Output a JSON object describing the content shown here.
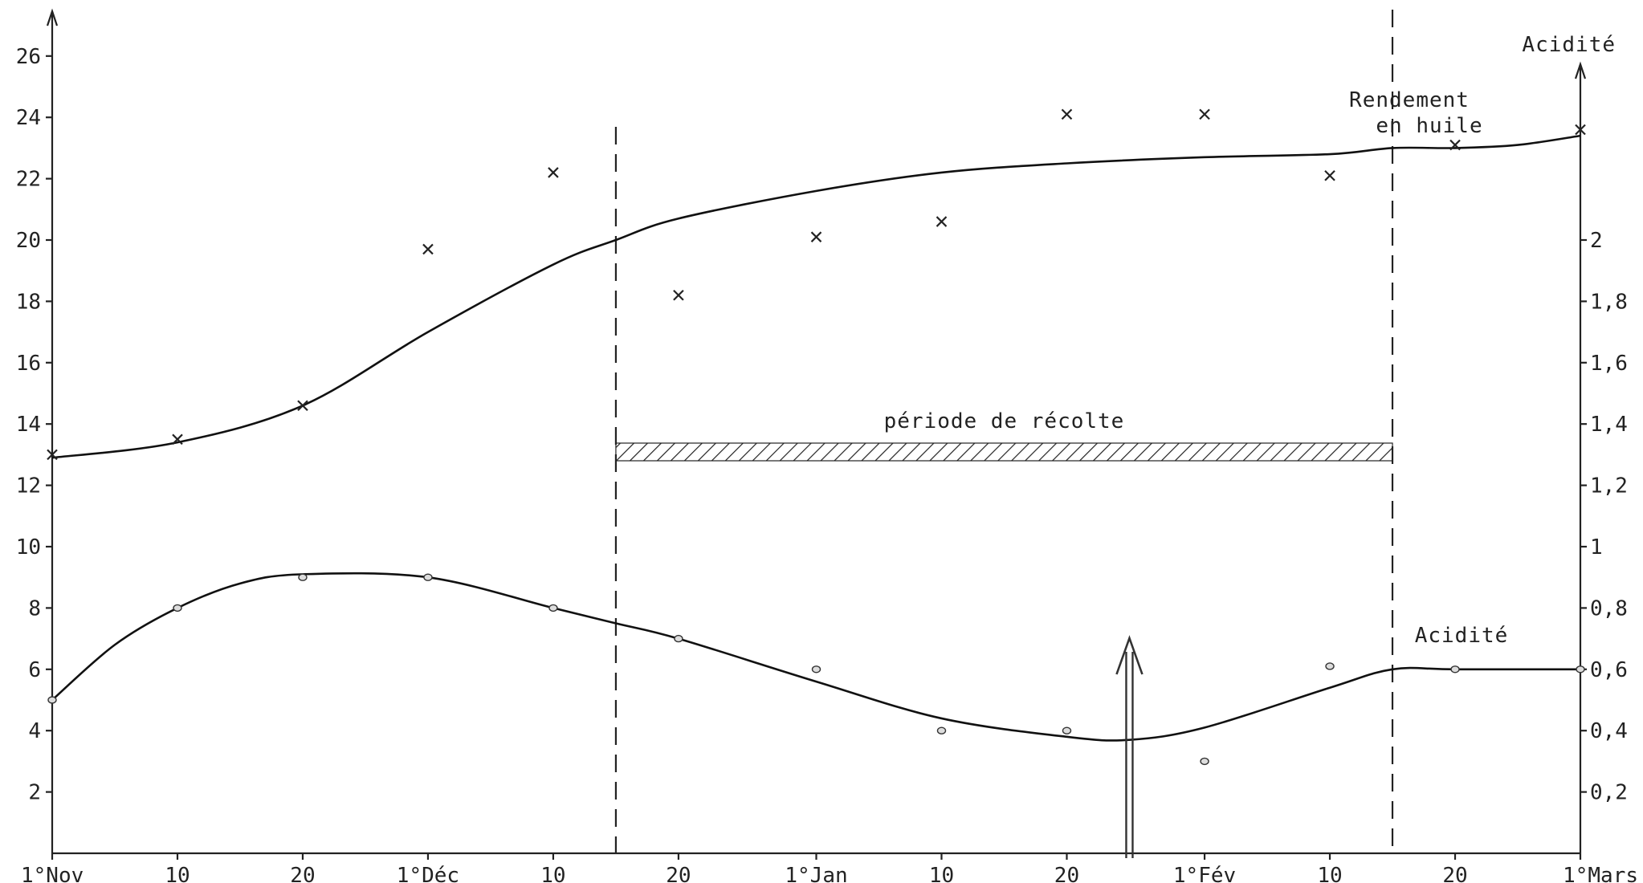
{
  "chart_data": {
    "type": "line",
    "x_labels": [
      "1°Nov",
      "10",
      "20",
      "1°Déc",
      "10",
      "20",
      "1°Jan",
      "10",
      "20",
      "1°Fév",
      "10",
      "20",
      "1°Mars"
    ],
    "x_days": [
      0,
      10,
      20,
      30,
      40,
      50,
      61,
      71,
      81,
      92,
      102,
      112,
      122
    ],
    "xlim": [
      0,
      122
    ],
    "left_axis": {
      "ticks": [
        2,
        4,
        6,
        8,
        10,
        12,
        14,
        16,
        18,
        20,
        22,
        24,
        26
      ],
      "ylim": [
        0,
        27.5
      ]
    },
    "right_axis": {
      "label": "Acidité",
      "ticks": [
        "0,2",
        "0,4",
        "0,6",
        "0,8",
        "1",
        "1,2",
        "1,4",
        "1,6",
        "1,8",
        "2"
      ],
      "tick_values": [
        0.2,
        0.4,
        0.6,
        0.8,
        1.0,
        1.2,
        1.4,
        1.6,
        1.8,
        2.0
      ],
      "ylim": [
        0,
        2.75
      ]
    },
    "series": [
      {
        "name": "Rendement en huile",
        "marker": "x",
        "axis": "left",
        "points": [
          [
            0,
            13
          ],
          [
            10,
            13.5
          ],
          [
            20,
            14.6
          ],
          [
            30,
            19.7
          ],
          [
            40,
            22.2
          ],
          [
            50,
            18.2
          ],
          [
            61,
            20.1
          ],
          [
            71,
            20.6
          ],
          [
            81,
            24.1
          ],
          [
            92,
            24.1
          ],
          [
            102,
            22.1
          ],
          [
            112,
            23.1
          ],
          [
            122,
            23.6
          ]
        ],
        "curve": [
          [
            0,
            12.9
          ],
          [
            10,
            13.4
          ],
          [
            20,
            14.6
          ],
          [
            30,
            17.0
          ],
          [
            40,
            19.2
          ],
          [
            45,
            20.0
          ],
          [
            50,
            20.7
          ],
          [
            61,
            21.6
          ],
          [
            71,
            22.2
          ],
          [
            81,
            22.5
          ],
          [
            92,
            22.7
          ],
          [
            102,
            22.8
          ],
          [
            107,
            23.0
          ],
          [
            112,
            23.0
          ],
          [
            117,
            23.1
          ],
          [
            122,
            23.4
          ]
        ]
      },
      {
        "name": "Acidité",
        "marker": "o",
        "axis": "right",
        "points": [
          [
            0,
            0.5
          ],
          [
            10,
            0.8
          ],
          [
            20,
            0.9
          ],
          [
            30,
            0.9
          ],
          [
            40,
            0.8
          ],
          [
            50,
            0.7
          ],
          [
            61,
            0.6
          ],
          [
            71,
            0.4
          ],
          [
            81,
            0.4
          ],
          [
            92,
            0.3
          ],
          [
            102,
            0.61
          ],
          [
            112,
            0.6
          ],
          [
            122,
            0.6
          ]
        ],
        "curve": [
          [
            0,
            0.5
          ],
          [
            5,
            0.68
          ],
          [
            10,
            0.8
          ],
          [
            15,
            0.88
          ],
          [
            20,
            0.91
          ],
          [
            30,
            0.9
          ],
          [
            40,
            0.8
          ],
          [
            45,
            0.75
          ],
          [
            50,
            0.7
          ],
          [
            61,
            0.56
          ],
          [
            71,
            0.44
          ],
          [
            81,
            0.38
          ],
          [
            86,
            0.37
          ],
          [
            92,
            0.41
          ],
          [
            102,
            0.54
          ],
          [
            107,
            0.6
          ],
          [
            112,
            0.6
          ],
          [
            122,
            0.6
          ]
        ]
      }
    ],
    "harvest_period": {
      "label": "période de récolte",
      "start_day": 45,
      "end_day": 107
    },
    "annotations": {
      "yield_label_line1": "Rendement",
      "yield_label_line2": "en huile",
      "acid_label": "Acidité"
    },
    "arrow_day": 86,
    "grid": false
  }
}
